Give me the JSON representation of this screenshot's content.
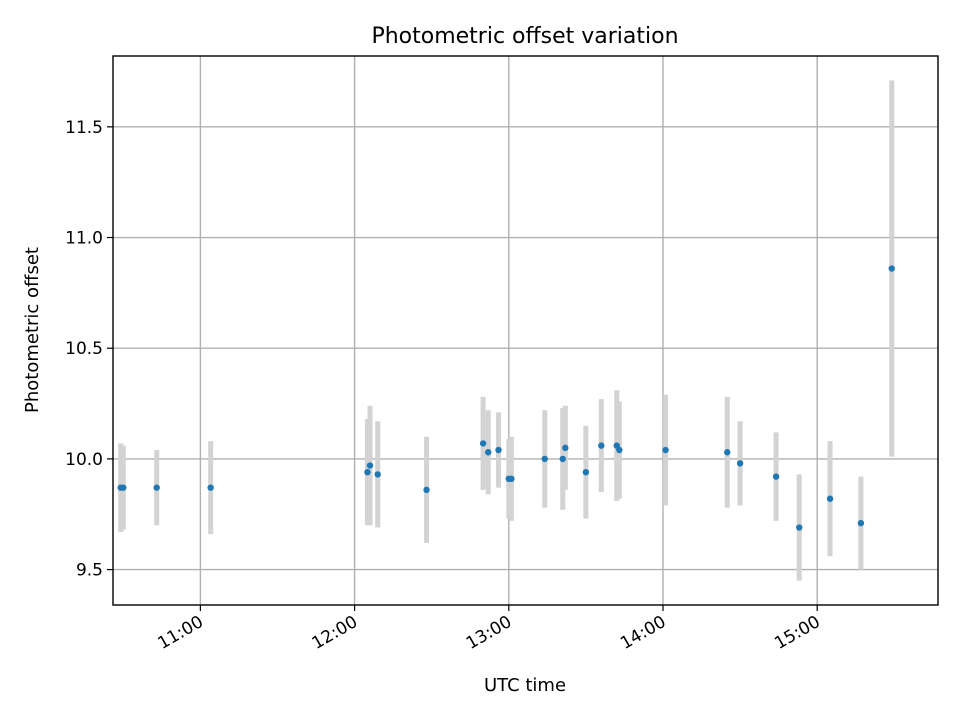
{
  "chart_data": {
    "type": "scatter",
    "title": "Photometric offset variation",
    "xlabel": "UTC time",
    "ylabel": "Photometric offset",
    "xlim": [
      "10:26",
      "15:47"
    ],
    "ylim": [
      9.34,
      11.82
    ],
    "x_ticks": [
      "11:00",
      "12:00",
      "13:00",
      "14:00",
      "15:00"
    ],
    "y_ticks": [
      "9.5",
      "10.0",
      "10.5",
      "11.0",
      "11.5"
    ],
    "grid": true,
    "legend": "none",
    "colors": {
      "point": "#1f77b4",
      "error_bar": "#d3d3d3",
      "grid": "#b0b0b0"
    },
    "points": [
      {
        "x": "10:29",
        "y": 9.87,
        "err": 0.2
      },
      {
        "x": "10:30",
        "y": 9.87,
        "err": 0.19
      },
      {
        "x": "10:43",
        "y": 9.87,
        "err": 0.17
      },
      {
        "x": "11:04",
        "y": 9.87,
        "err": 0.21
      },
      {
        "x": "12:05",
        "y": 9.94,
        "err": 0.24
      },
      {
        "x": "12:06",
        "y": 9.97,
        "err": 0.27
      },
      {
        "x": "12:09",
        "y": 9.93,
        "err": 0.24
      },
      {
        "x": "12:28",
        "y": 9.86,
        "err": 0.24
      },
      {
        "x": "12:50",
        "y": 10.07,
        "err": 0.21
      },
      {
        "x": "12:52",
        "y": 10.03,
        "err": 0.19
      },
      {
        "x": "12:56",
        "y": 10.04,
        "err": 0.17
      },
      {
        "x": "13:00",
        "y": 9.91,
        "err": 0.18
      },
      {
        "x": "13:01",
        "y": 9.91,
        "err": 0.19
      },
      {
        "x": "13:14",
        "y": 10.0,
        "err": 0.22
      },
      {
        "x": "13:21",
        "y": 10.0,
        "err": 0.23
      },
      {
        "x": "13:22",
        "y": 10.05,
        "err": 0.19
      },
      {
        "x": "13:30",
        "y": 9.94,
        "err": 0.21
      },
      {
        "x": "13:36",
        "y": 10.06,
        "err": 0.21
      },
      {
        "x": "13:42",
        "y": 10.06,
        "err": 0.25
      },
      {
        "x": "13:43",
        "y": 10.04,
        "err": 0.22
      },
      {
        "x": "14:01",
        "y": 10.04,
        "err": 0.25
      },
      {
        "x": "14:25",
        "y": 10.03,
        "err": 0.25
      },
      {
        "x": "14:30",
        "y": 9.98,
        "err": 0.19
      },
      {
        "x": "14:44",
        "y": 9.92,
        "err": 0.2
      },
      {
        "x": "14:53",
        "y": 9.69,
        "err": 0.24
      },
      {
        "x": "15:05",
        "y": 9.82,
        "err": 0.26
      },
      {
        "x": "15:17",
        "y": 9.71,
        "err": 0.21
      },
      {
        "x": "15:29",
        "y": 10.86,
        "err": 0.85
      }
    ]
  }
}
